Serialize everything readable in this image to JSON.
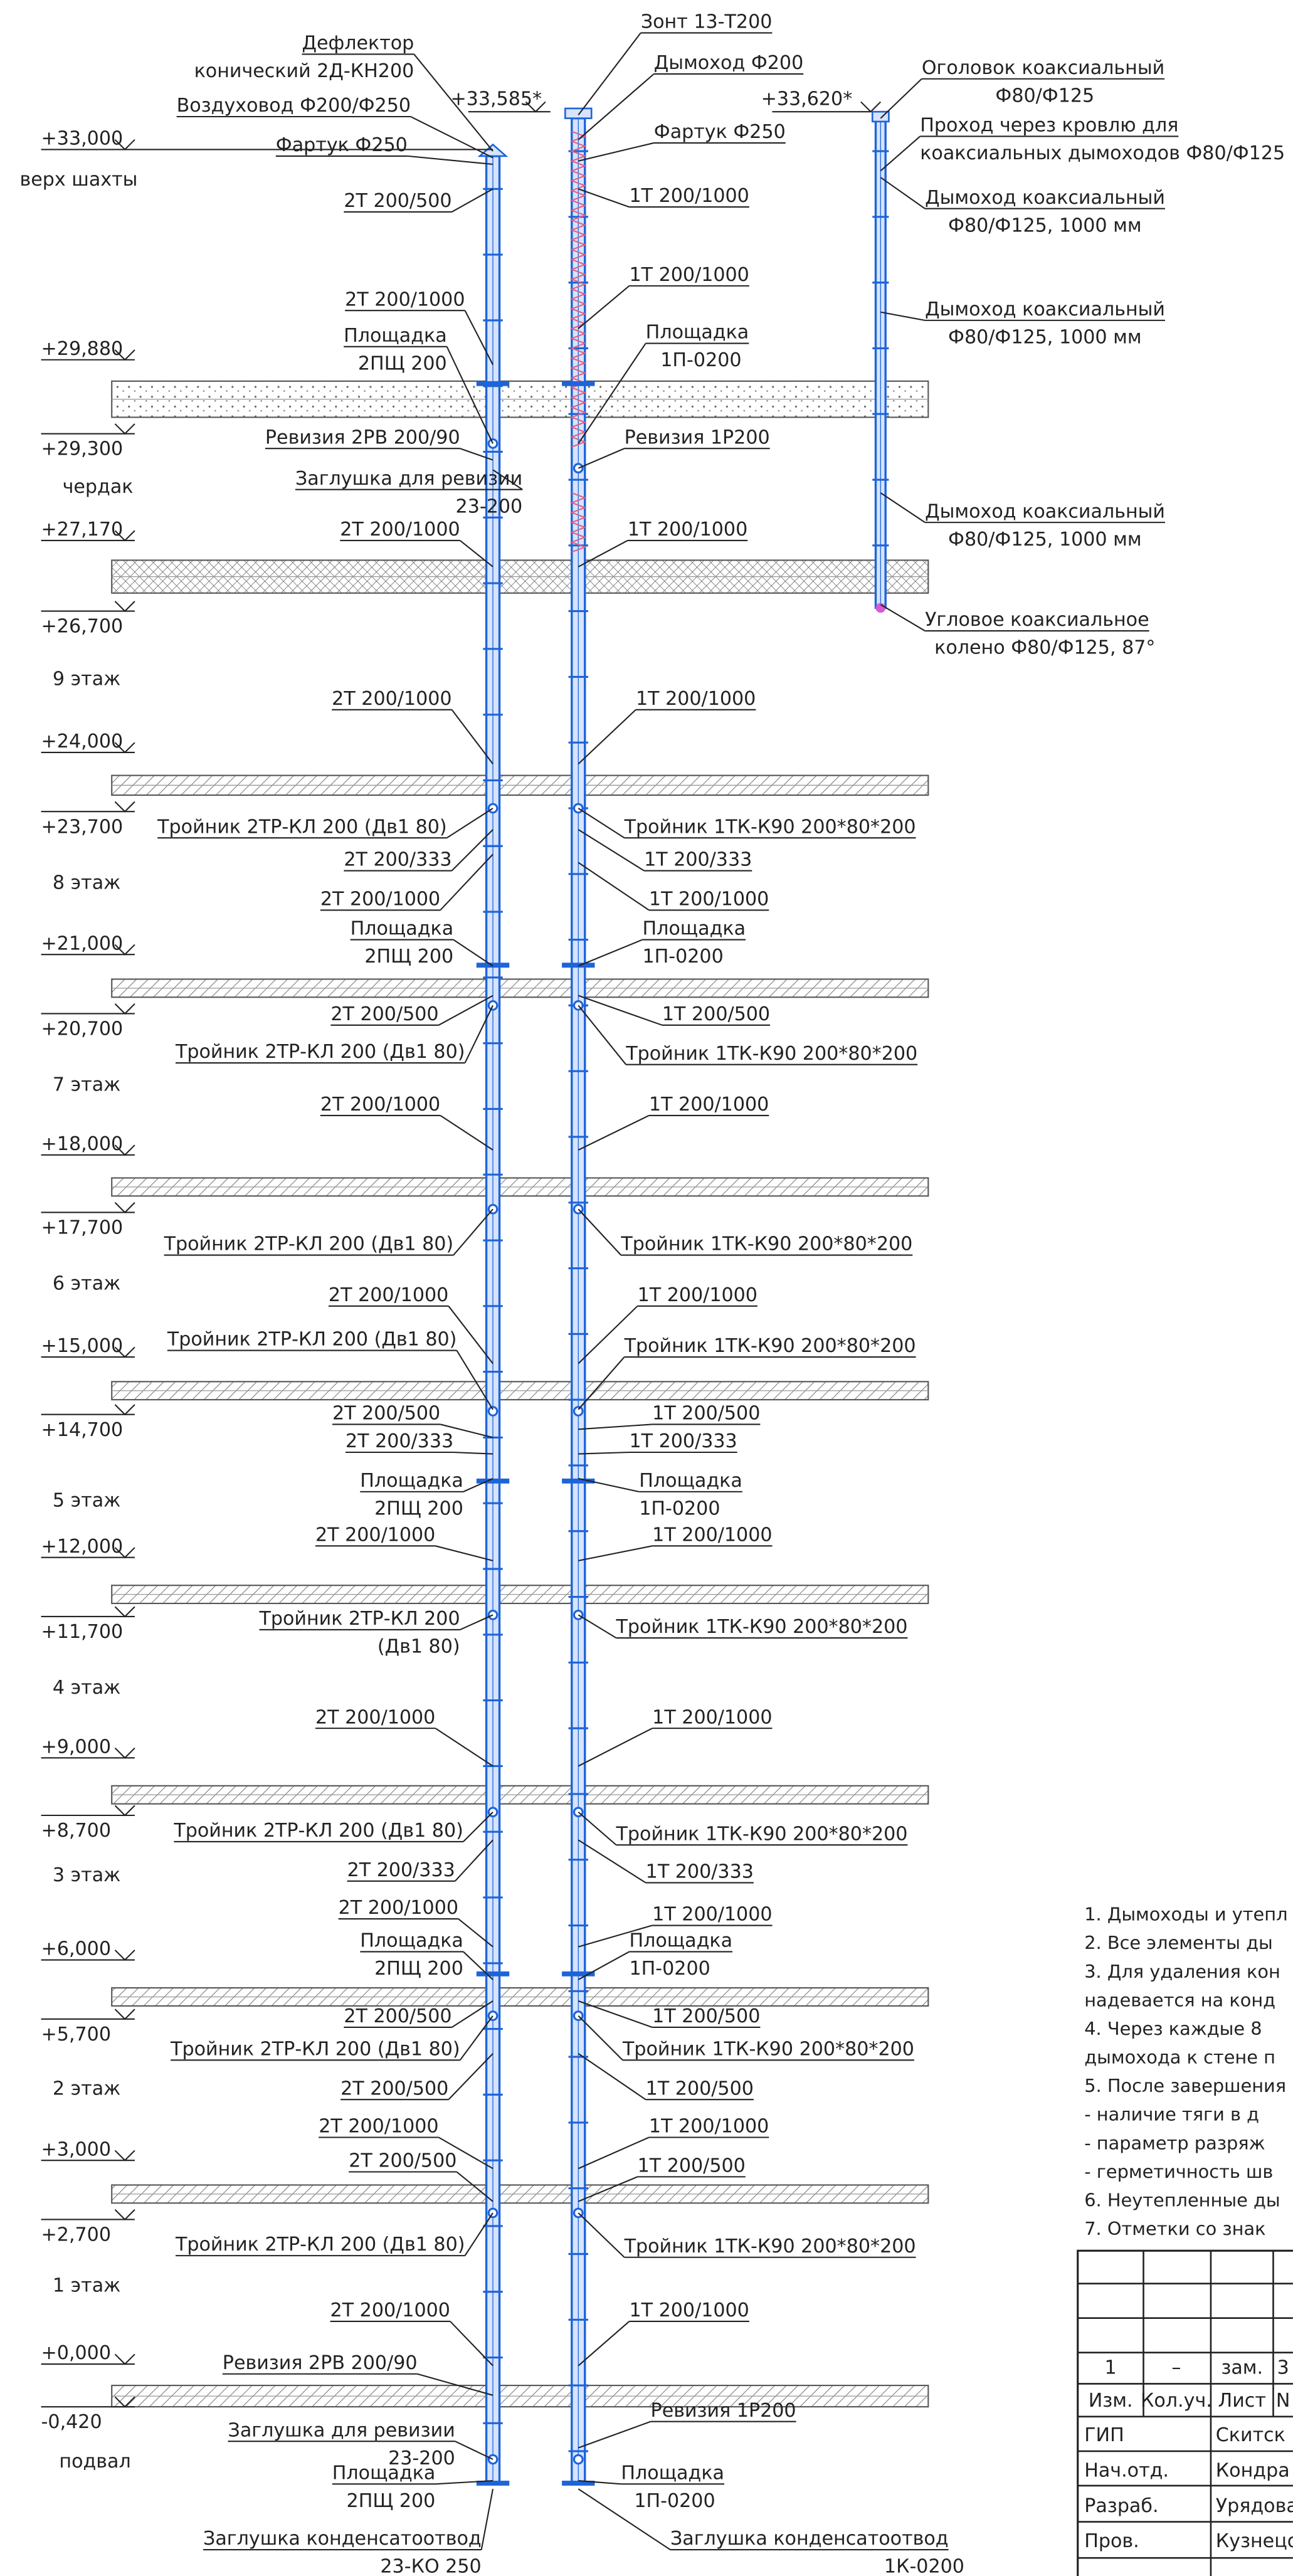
{
  "elevations": [
    "+33,000",
    "+29,880",
    "+29,300",
    "+27,170",
    "+26,700",
    "+24,000",
    "+23,700",
    "+21,000",
    "+20,700",
    "+18,000",
    "+17,700",
    "+15,000",
    "+14,700",
    "+12,000",
    "+11,700",
    "+9,000",
    "+8,700",
    "+6,000",
    "+5,700",
    "+3,000",
    "+2,700",
    "+0,000",
    "-0,420"
  ],
  "floors": [
    "верх шахты",
    "чердак",
    "9 этаж",
    "8 этаж",
    "7 этаж",
    "6 этаж",
    "5 этаж",
    "4 этаж",
    "3 этаж",
    "2 этаж",
    "1 этаж",
    "подвал"
  ],
  "top_marks": [
    "+33,585*",
    "+33,620*"
  ],
  "left_callouts": [
    [
      "Дефлектор",
      "конический 2Д-КН200"
    ],
    [
      "Воздуховод Ф200/Ф250"
    ],
    [
      "Фартук Ф250"
    ],
    [
      "2Т 200/500"
    ],
    [
      "2Т 200/1000"
    ],
    [
      "Площадка",
      "2ПЩ 200"
    ],
    [
      "Ревизия 2РВ 200/90"
    ],
    [
      "Заглушка для ревизии",
      "23-200"
    ],
    [
      "2Т 200/1000"
    ],
    [
      "2Т 200/1000"
    ],
    [
      "Тройник 2ТР-КЛ 200 (Дв1 80)"
    ],
    [
      "2Т 200/333"
    ],
    [
      "2Т 200/1000"
    ],
    [
      "Площадка",
      "2ПЩ 200"
    ],
    [
      "2Т 200/500"
    ],
    [
      "Тройник 2ТР-КЛ 200 (Дв1 80)"
    ],
    [
      "2Т 200/1000"
    ],
    [
      "Тройник 2ТР-КЛ 200 (Дв1 80)"
    ],
    [
      "2Т 200/1000"
    ],
    [
      "Тройник 2ТР-КЛ 200 (Дв1 80)"
    ],
    [
      "2Т 200/500"
    ],
    [
      "2Т 200/333"
    ],
    [
      "Площадка",
      "2ПЩ 200"
    ],
    [
      "2Т 200/1000"
    ],
    [
      "Тройник 2ТР-КЛ 200",
      "(Дв1 80)"
    ],
    [
      "2Т 200/1000"
    ],
    [
      "Тройник 2ТР-КЛ 200 (Дв1 80)"
    ],
    [
      "2Т 200/333"
    ],
    [
      "2Т 200/1000"
    ],
    [
      "Площадка",
      "2ПЩ 200"
    ],
    [
      "2Т 200/500"
    ],
    [
      "Тройник 2ТР-КЛ 200 (Дв1 80)"
    ],
    [
      "2Т 200/500"
    ],
    [
      "2Т 200/1000"
    ],
    [
      "2Т 200/500"
    ],
    [
      "Тройник 2ТР-КЛ 200 (Дв1 80)"
    ],
    [
      "2Т 200/1000"
    ],
    [
      "Ревизия 2РВ 200/90"
    ],
    [
      "Заглушка для ревизии",
      "23-200"
    ],
    [
      "Площадка",
      "2ПЩ 200"
    ],
    [
      "Заглушка конденсатоотвод",
      "23-КО 250"
    ]
  ],
  "middle_callouts": [
    [
      "Зонт 13-Т200"
    ],
    [
      "Дымоход Ф200"
    ],
    [
      "Фартук Ф250"
    ],
    [
      "1Т 200/1000"
    ],
    [
      "1Т 200/1000"
    ],
    [
      "Площадка",
      "1П-0200"
    ],
    [
      "Ревизия 1Р200"
    ],
    [
      "1Т 200/1000"
    ],
    [
      "1Т 200/1000"
    ],
    [
      "Тройник 1ТК-К90 200*80*200"
    ],
    [
      "1Т 200/333"
    ],
    [
      "1Т 200/1000"
    ],
    [
      "Площадка",
      "1П-0200"
    ],
    [
      "1Т 200/500"
    ],
    [
      "Тройник 1ТК-К90 200*80*200"
    ],
    [
      "1Т 200/1000"
    ],
    [
      "Тройник 1ТК-К90 200*80*200"
    ],
    [
      "1Т 200/1000"
    ],
    [
      "Тройник 1ТК-К90 200*80*200"
    ],
    [
      "1Т 200/500"
    ],
    [
      "1Т 200/333"
    ],
    [
      "Площадка",
      "1П-0200"
    ],
    [
      "1Т 200/1000"
    ],
    [
      "Тройник 1ТК-К90 200*80*200"
    ],
    [
      "1Т 200/1000"
    ],
    [
      "Тройник 1ТК-К90 200*80*200"
    ],
    [
      "1Т 200/333"
    ],
    [
      "1Т 200/1000"
    ],
    [
      "Площадка",
      "1П-0200"
    ],
    [
      "1Т 200/500"
    ],
    [
      "Тройник 1ТК-К90 200*80*200"
    ],
    [
      "1Т 200/500"
    ],
    [
      "1Т 200/1000"
    ],
    [
      "1Т 200/500"
    ],
    [
      "Тройник 1ТК-К90 200*80*200"
    ],
    [
      "1Т 200/1000"
    ],
    [
      "Ревизия 1Р200"
    ],
    [
      "Площадка",
      "1П-0200"
    ],
    [
      "Заглушка конденсатоотвод",
      "1К-0200"
    ]
  ],
  "right_callouts": [
    [
      "Оголовок коаксиальный",
      "Ф80/Ф125"
    ],
    [
      "Проход через кровлю для",
      "коаксиальных дымоходов Ф80/Ф125"
    ],
    [
      "Дымоход коаксиальный",
      "Ф80/Ф125, 1000 мм"
    ],
    [
      "Дымоход коаксиальный",
      "Ф80/Ф125, 1000 мм"
    ],
    [
      "Дымоход коаксиальный",
      "Ф80/Ф125, 1000 мм"
    ],
    [
      "Угловое коаксиальное",
      "колено Ф80/Ф125, 87°"
    ]
  ],
  "notes": [
    "1. Дымоходы и утепл",
    "2. Все элементы ды",
    "3. Для удаления кон",
    "надевается на конд",
    "4. Через каждые 8 ",
    "дымохода к стене п",
    "5. После завершения",
    "- наличие тяги в д",
    "- параметр разряж",
    "- герметичность шв",
    "6. Неутепленные ды",
    "7. Отметки со знак"
  ],
  "title_block": {
    "revision_row": [
      "1",
      "–",
      "зам.",
      "3"
    ],
    "header_row": [
      "Изм.",
      "Кол.уч.",
      "Лист",
      "N"
    ],
    "signatures": [
      [
        "ГИП",
        "Скитск"
      ],
      [
        "Нач.отд.",
        "Кондра"
      ],
      [
        "Разраб.",
        "Урядова"
      ],
      [
        "Пров.",
        "Кузнецо"
      ]
    ]
  }
}
